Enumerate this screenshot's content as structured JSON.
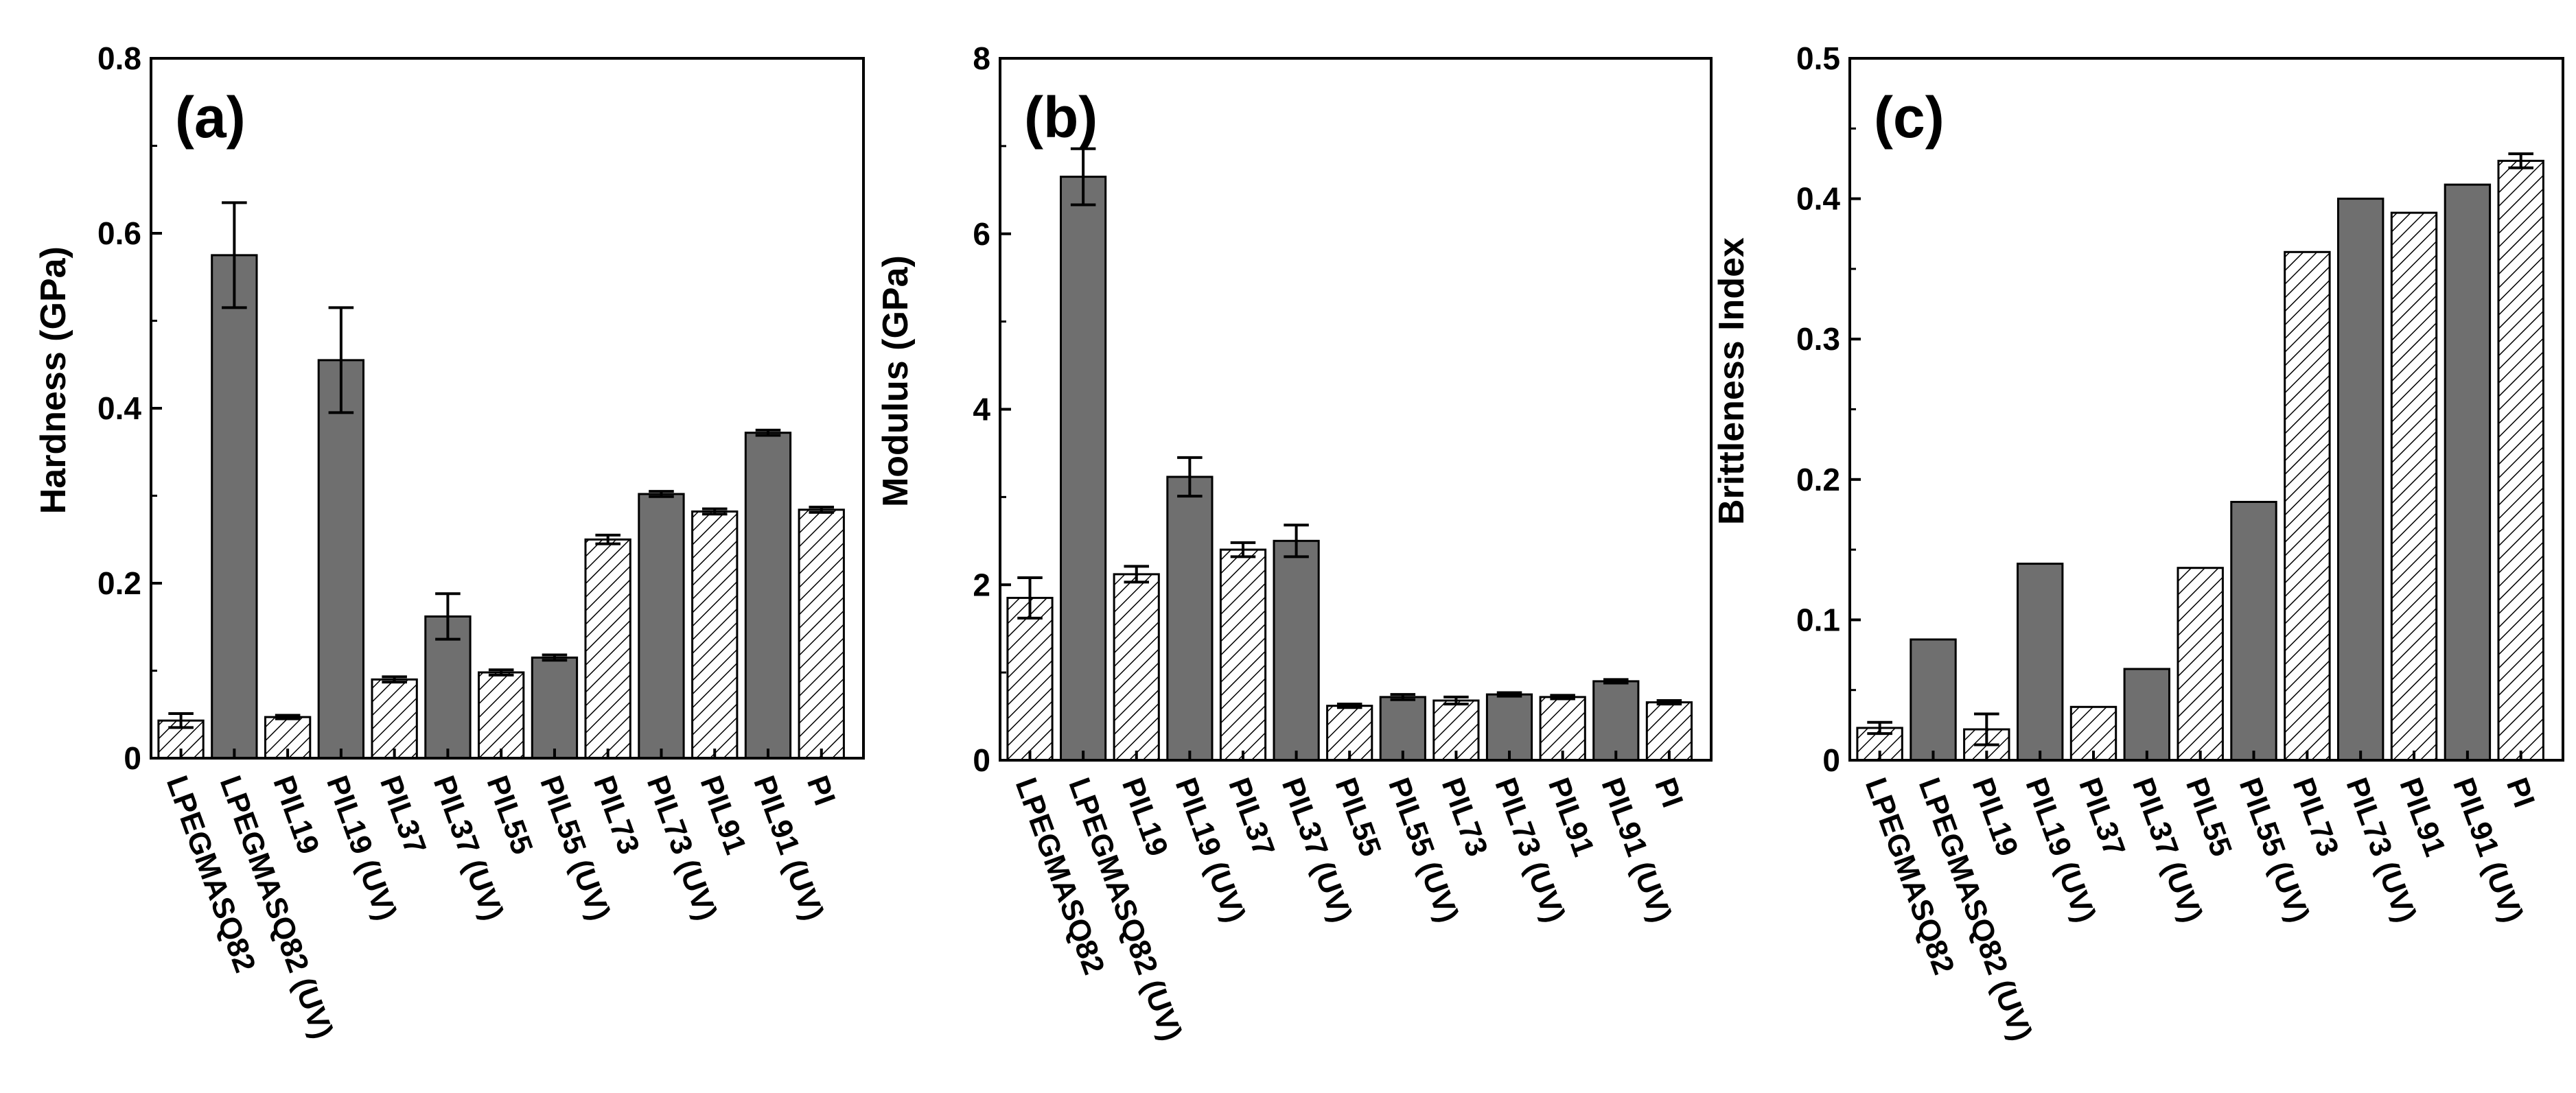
{
  "chart_data": [
    {
      "type": "bar",
      "panel_label": "(a)",
      "title": "",
      "xlabel": "",
      "ylabel": "Hardness (GPa)",
      "ylim": [
        0,
        0.8
      ],
      "yticks": [
        "0",
        "0.2",
        "0.4",
        "0.6",
        "0.8"
      ],
      "yticks_values": [
        0,
        0.2,
        0.4,
        0.6,
        0.8
      ],
      "categories": [
        "LPEGMASQ82",
        "LPEGMASQ82 (UV)",
        "PIL19",
        "PIL19 (UV)",
        "PIL37",
        "PIL37 (UV)",
        "PIL55",
        "PIL55 (UV)",
        "PIL73",
        "PIL73 (UV)",
        "PIL91",
        "PIL91 (UV)",
        "PI"
      ],
      "values": [
        0.043,
        0.575,
        0.047,
        0.455,
        0.09,
        0.162,
        0.098,
        0.115,
        0.25,
        0.302,
        0.282,
        0.372,
        0.284
      ],
      "errors": [
        0.008,
        0.06,
        0.002,
        0.06,
        0.003,
        0.026,
        0.003,
        0.003,
        0.005,
        0.003,
        0.003,
        0.003,
        0.003
      ],
      "styles": [
        "hatched",
        "solid",
        "hatched",
        "solid",
        "hatched",
        "solid",
        "hatched",
        "solid",
        "hatched",
        "solid",
        "hatched",
        "solid",
        "hatched"
      ]
    },
    {
      "type": "bar",
      "panel_label": "(b)",
      "title": "",
      "xlabel": "",
      "ylabel": "Modulus (GPa)",
      "ylim": [
        0,
        8
      ],
      "yticks": [
        "0",
        "2",
        "4",
        "6",
        "8"
      ],
      "yticks_values": [
        0,
        2,
        4,
        6,
        8
      ],
      "categories": [
        "LPEGMASQ82",
        "LPEGMASQ82 (UV)",
        "PIL19",
        "PIL19 (UV)",
        "PIL37",
        "PIL37 (UV)",
        "PIL55",
        "PIL55 (UV)",
        "PIL73",
        "PIL73 (UV)",
        "PIL91",
        "PIL91 (UV)",
        "PI"
      ],
      "values": [
        1.85,
        6.65,
        2.12,
        3.23,
        2.4,
        2.5,
        0.62,
        0.72,
        0.68,
        0.75,
        0.72,
        0.9,
        0.66
      ],
      "errors": [
        0.23,
        0.32,
        0.09,
        0.22,
        0.08,
        0.18,
        0.02,
        0.03,
        0.04,
        0.02,
        0.02,
        0.02,
        0.02
      ],
      "styles": [
        "hatched",
        "solid",
        "hatched",
        "solid",
        "hatched",
        "solid",
        "hatched",
        "solid",
        "hatched",
        "solid",
        "hatched",
        "solid",
        "hatched"
      ]
    },
    {
      "type": "bar",
      "panel_label": "(c)",
      "title": "",
      "xlabel": "",
      "ylabel": "Brittleness Index",
      "ylim": [
        0,
        0.5
      ],
      "yticks": [
        "0",
        "0.1",
        "0.2",
        "0.3",
        "0.4",
        "0.5"
      ],
      "yticks_values": [
        0,
        0.1,
        0.2,
        0.3,
        0.4,
        0.5
      ],
      "categories": [
        "LPEGMASQ82",
        "LPEGMASQ82 (UV)",
        "PIL19",
        "PIL19 (UV)",
        "PIL37",
        "PIL37 (UV)",
        "PIL55",
        "PIL55 (UV)",
        "PIL73",
        "PIL73 (UV)",
        "PIL91",
        "PIL91 (UV)",
        "PI"
      ],
      "values": [
        0.023,
        0.086,
        0.022,
        0.14,
        0.038,
        0.065,
        0.137,
        0.184,
        0.362,
        0.4,
        0.39,
        0.41,
        0.427
      ],
      "errors": [
        0.004,
        0,
        0.011,
        0,
        0,
        0,
        0,
        0,
        0,
        0,
        0,
        0,
        0.005
      ],
      "styles": [
        "hatched",
        "solid",
        "hatched",
        "solid",
        "hatched",
        "solid",
        "hatched",
        "solid",
        "hatched",
        "solid",
        "hatched",
        "solid",
        "hatched"
      ]
    }
  ],
  "colors": {
    "solid_fill": "#6f6f6f",
    "hatched_fill": "#ffffff",
    "stroke": "#000000"
  }
}
